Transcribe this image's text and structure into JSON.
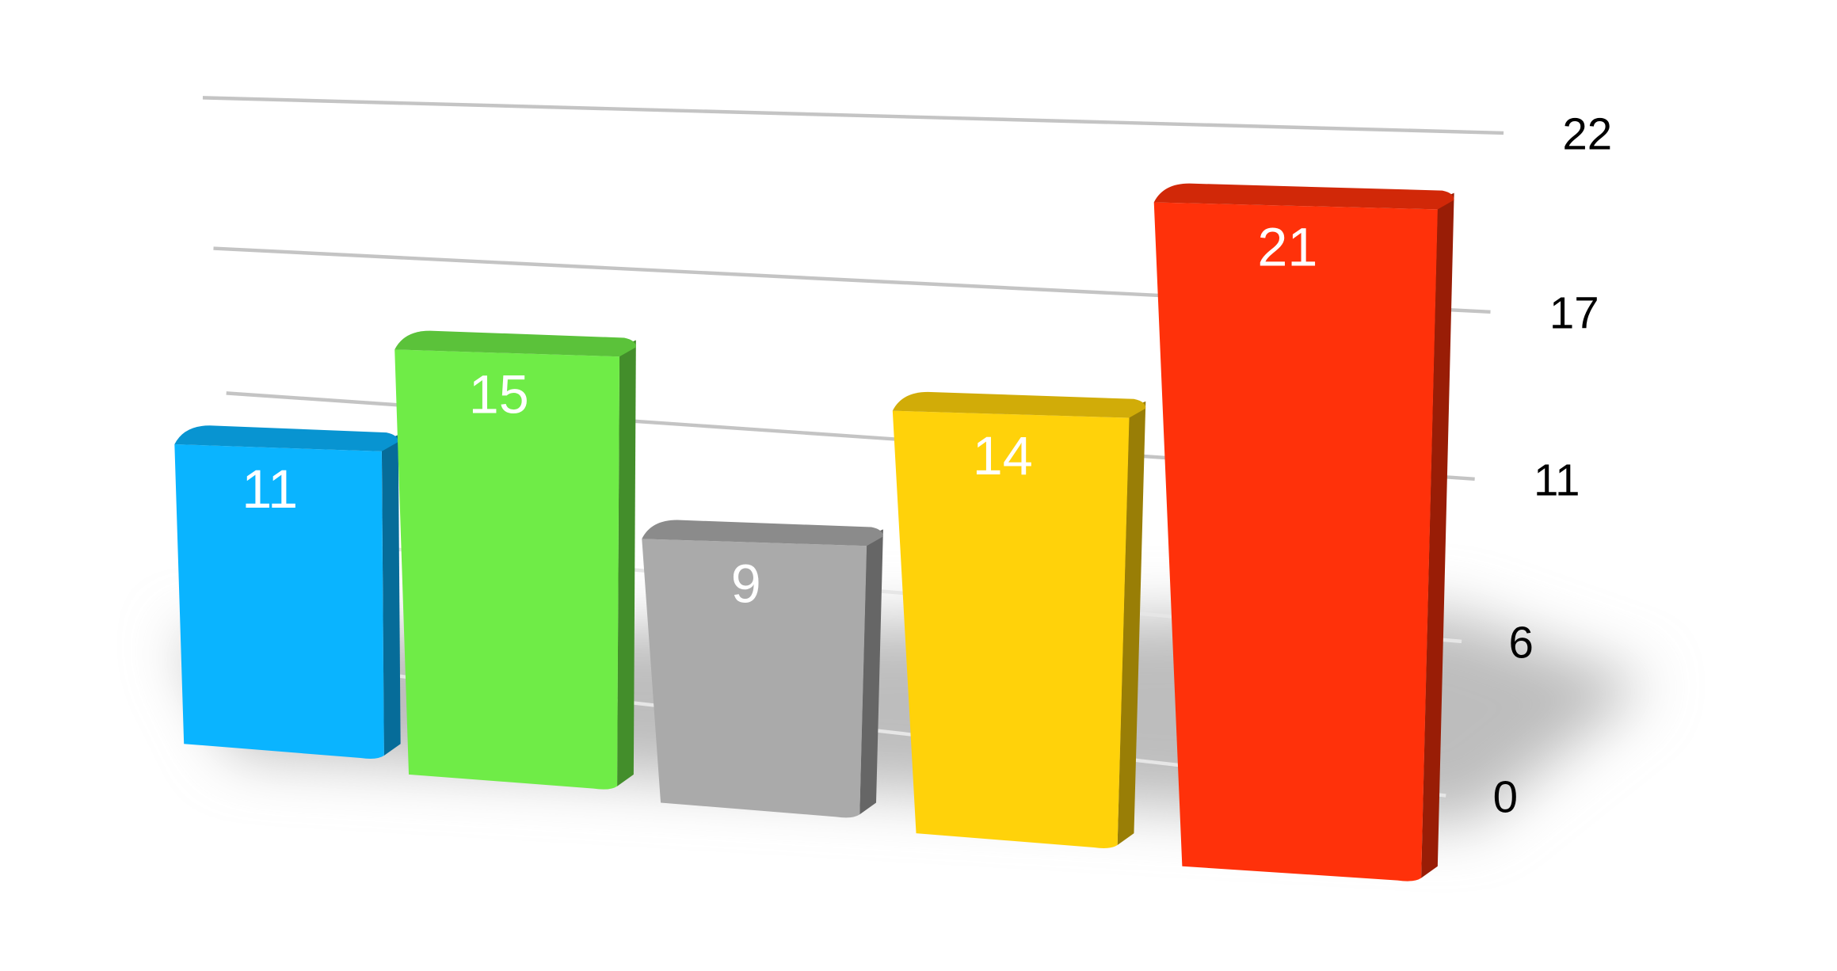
{
  "chart_data": {
    "type": "bar",
    "style": "3d",
    "title": "",
    "xlabel": "",
    "ylabel": "",
    "categories": [
      "",
      "",
      "",
      "",
      ""
    ],
    "values": [
      11,
      15,
      9,
      14,
      21
    ],
    "data_labels": [
      "11",
      "15",
      "9",
      "14",
      "21"
    ],
    "colors": [
      "#0ab4ff",
      "#6fec47",
      "#aaaaaa",
      "#ffd20a",
      "#ff310a"
    ],
    "y_ticks": [
      0,
      6,
      11,
      17,
      22
    ],
    "y_tick_labels": [
      "0",
      "6",
      "11",
      "17",
      "22"
    ],
    "ylim": [
      0,
      22
    ],
    "y_axis_position": "right",
    "grid": true,
    "legend": "none"
  }
}
